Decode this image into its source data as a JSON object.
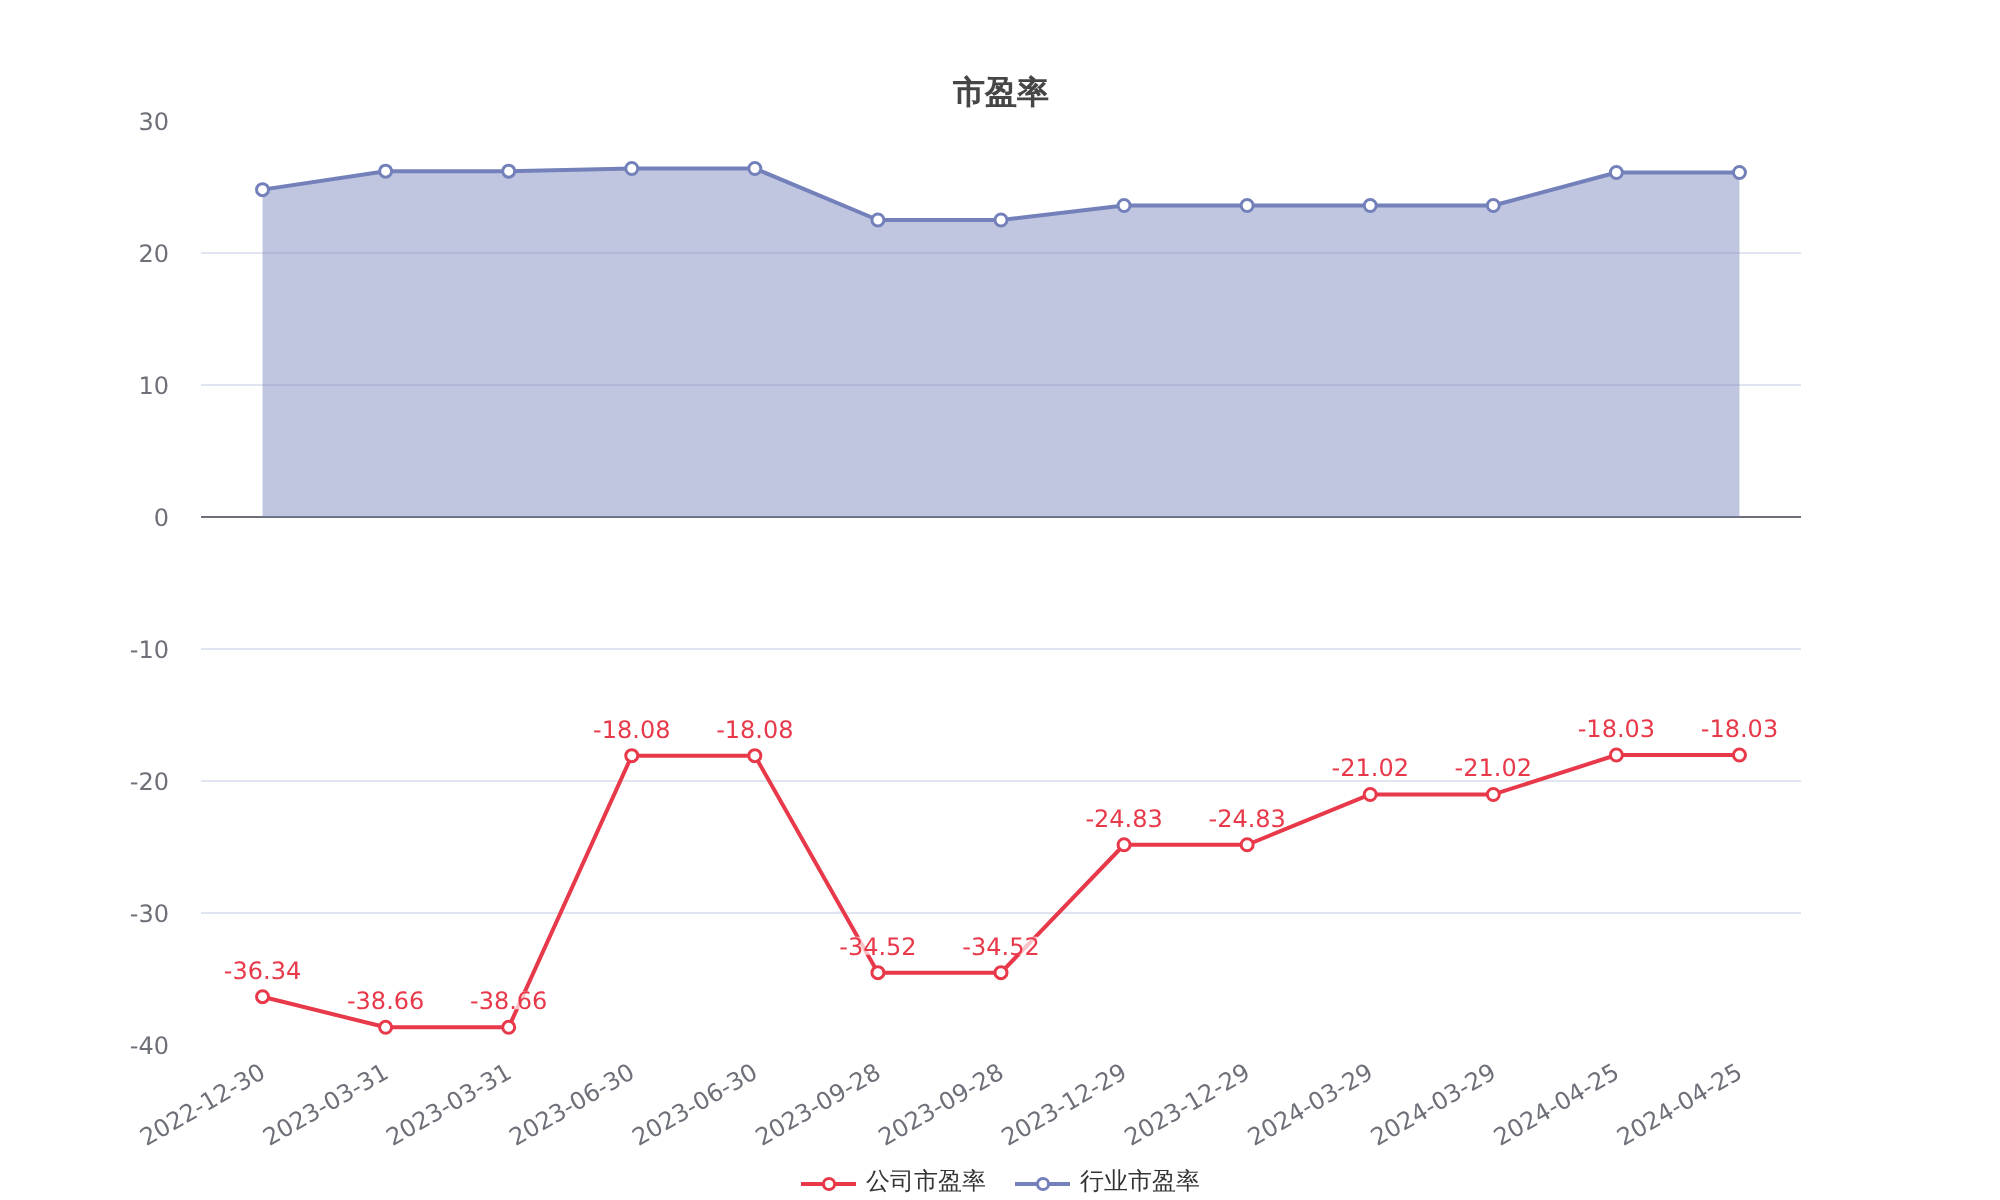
{
  "chart_data": {
    "type": "line",
    "title": "市盈率",
    "categories": [
      "2022-12-30",
      "2023-03-31",
      "2023-03-31",
      "2023-06-30",
      "2023-06-30",
      "2023-09-28",
      "2023-09-28",
      "2023-12-29",
      "2023-12-29",
      "2024-03-29",
      "2024-03-29",
      "2024-04-25",
      "2024-04-25"
    ],
    "series": [
      {
        "name": "公司市盈率",
        "color": "#e8394a",
        "values": [
          -36.34,
          -38.66,
          -38.66,
          -18.08,
          -18.08,
          -34.52,
          -34.52,
          -24.83,
          -24.83,
          -21.02,
          -21.02,
          -18.03,
          -18.03
        ],
        "value_labels": [
          "-36.34",
          "-38.66",
          "-38.66",
          "-18.08",
          "-18.08",
          "-34.52",
          "-34.52",
          "-24.83",
          "-24.83",
          "-21.02",
          "-21.02",
          "-18.03",
          "-18.03"
        ]
      },
      {
        "name": "行业市盈率",
        "type": "area",
        "color": "#7380ba",
        "values": [
          24.8,
          26.2,
          26.2,
          26.4,
          26.4,
          22.5,
          22.5,
          23.6,
          23.6,
          23.6,
          23.6,
          26.1,
          26.1
        ]
      }
    ],
    "ylim": [
      -40,
      30
    ],
    "yticks": [
      -40,
      -30,
      -20,
      -10,
      0,
      10,
      20,
      30
    ],
    "grid": "y",
    "legend": "bottom",
    "marker": "circle",
    "line_style": "solid"
  }
}
